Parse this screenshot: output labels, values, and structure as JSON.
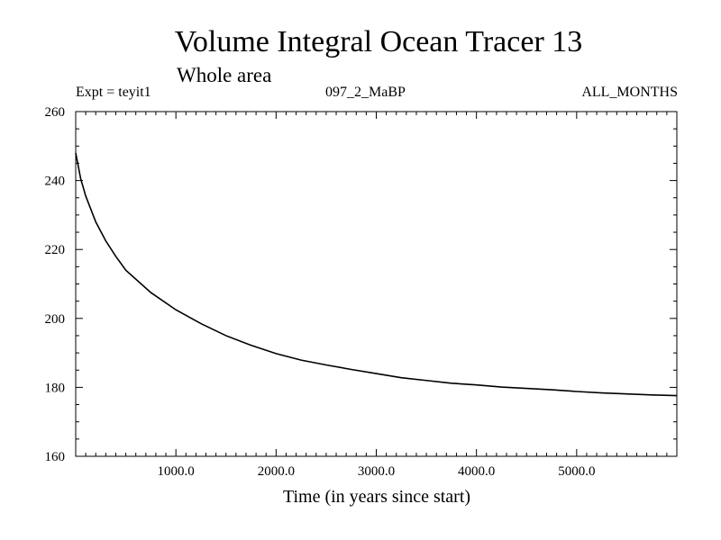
{
  "header": {
    "title": "Volume Integral Ocean Tracer 13",
    "subtitle": "Whole area",
    "expt_label": "Expt = teyit1",
    "run_label": "097_2_MaBP",
    "months_label": "ALL_MONTHS"
  },
  "chart_data": {
    "type": "line",
    "title": "Volume Integral Ocean Tracer 13",
    "subtitle": "Whole area",
    "xlabel": "Time (in years since start)",
    "ylabel": "",
    "xlim": [
      0,
      6000
    ],
    "ylim": [
      160,
      260
    ],
    "xticks": [
      1000,
      2000,
      3000,
      4000,
      5000
    ],
    "xtick_labels": [
      "1000.0",
      "2000.0",
      "3000.0",
      "4000.0",
      "5000.0"
    ],
    "yticks": [
      160,
      180,
      200,
      220,
      240,
      260
    ],
    "ytick_labels": [
      "160",
      "180",
      "200",
      "220",
      "240",
      "260"
    ],
    "grid": false,
    "series": [
      {
        "name": "Volume Integral Ocean Tracer 13",
        "color": "#000000",
        "x": [
          0,
          50,
          100,
          200,
          300,
          400,
          500,
          750,
          1000,
          1250,
          1500,
          1750,
          2000,
          2250,
          2500,
          2750,
          3000,
          3250,
          3500,
          3750,
          4000,
          4250,
          4500,
          4750,
          5000,
          5250,
          5500,
          5750,
          6000
        ],
        "y": [
          248.0,
          240.5,
          235.5,
          228.0,
          222.5,
          218.0,
          214.0,
          207.5,
          202.5,
          198.5,
          195.0,
          192.2,
          189.8,
          187.9,
          186.5,
          185.2,
          184.0,
          182.8,
          182.0,
          181.2,
          180.7,
          180.1,
          179.7,
          179.3,
          178.8,
          178.4,
          178.1,
          177.8,
          177.6
        ]
      }
    ]
  }
}
